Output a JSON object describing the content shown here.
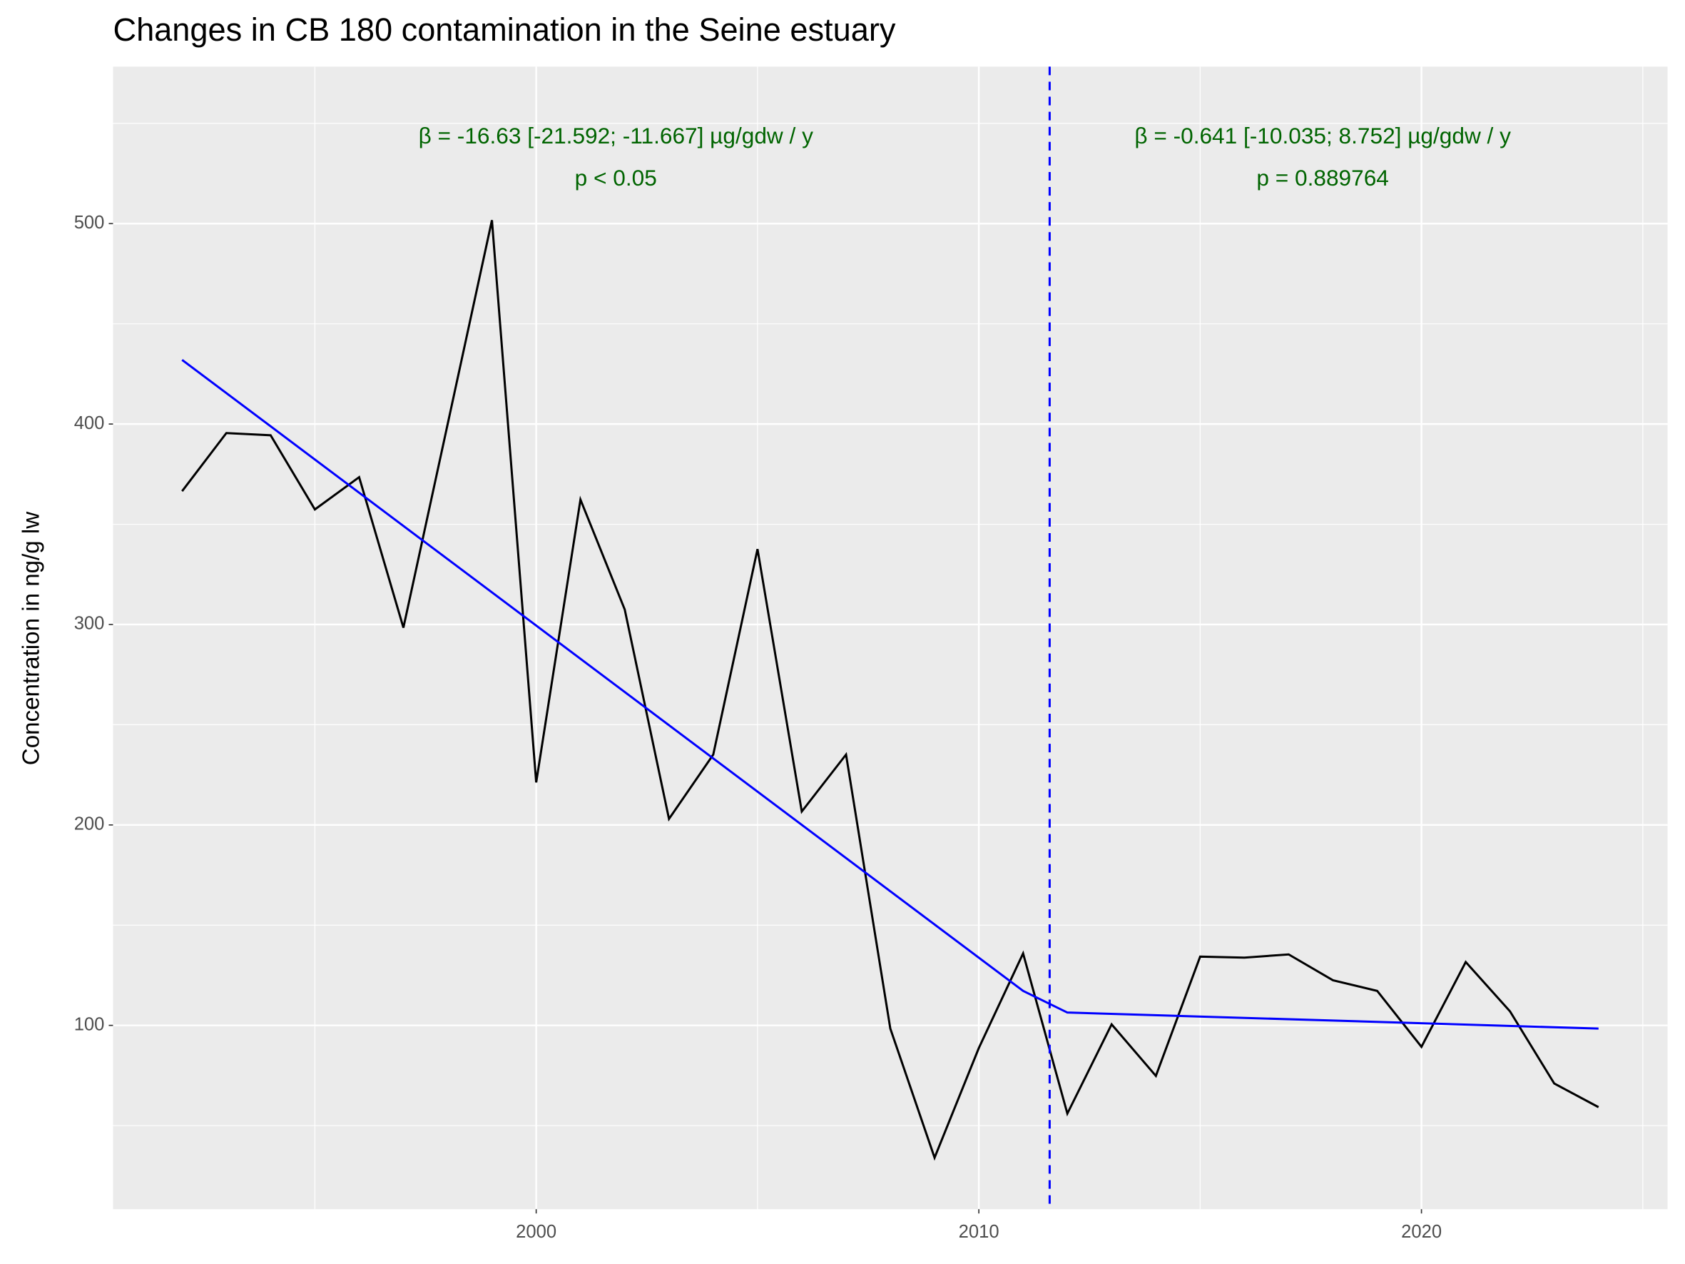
{
  "chart_data": {
    "type": "line",
    "title": "Changes in CB 180 contamination in the Seine estuary",
    "y_label": "Concentration in ng/g lw",
    "series": [
      {
        "color": "#000000",
        "x": [
          1992,
          1993,
          1994,
          1995,
          1996,
          1997,
          1998,
          1999,
          2000,
          2001,
          2002,
          2003,
          2004,
          2005,
          2006,
          2007,
          2008,
          2009,
          2010,
          2011,
          2012,
          2013,
          2014,
          2015,
          2016,
          2017,
          2018,
          2019,
          2020,
          2021,
          2022,
          2023,
          2024
        ],
        "values": [
          366.5,
          395.5,
          394.4,
          357.4,
          373.5,
          298.4,
          400,
          501.7,
          221.2,
          362.3,
          307.5,
          203.0,
          235.1,
          337.6,
          206.7,
          235.1,
          98.4,
          34.0,
          88.7,
          135.9,
          56.0,
          100.5,
          74.8,
          134.3,
          133.8,
          135.4,
          122.5,
          117.2,
          89.3,
          131.6,
          107.0,
          71.0,
          59.2
        ]
      },
      {
        "color": "#0000ff",
        "x": [
          1992,
          2011,
          2012,
          2024
        ],
        "values": [
          432.0,
          117.2,
          106.4,
          98.4
        ]
      }
    ],
    "vline": 2011.6,
    "vline_color": "#0000ff",
    "annotations": [
      {
        "lines": [
          "β = -16.63 [-21.592; -11.667] µg/gdw / y",
          "p < 0.05"
        ]
      },
      {
        "lines": [
          "β = -0.641 [-10.035; 8.752] µg/gdw / y",
          "p = 0.889764"
        ]
      }
    ],
    "annotation_color": "#006400",
    "xlim": [
      1990.44,
      2025.56
    ],
    "ylim": [
      8.3,
      578.3
    ],
    "xticks": [
      2000,
      2010,
      2020
    ],
    "yticks": [
      100,
      200,
      300,
      400,
      500
    ],
    "grid": true
  }
}
